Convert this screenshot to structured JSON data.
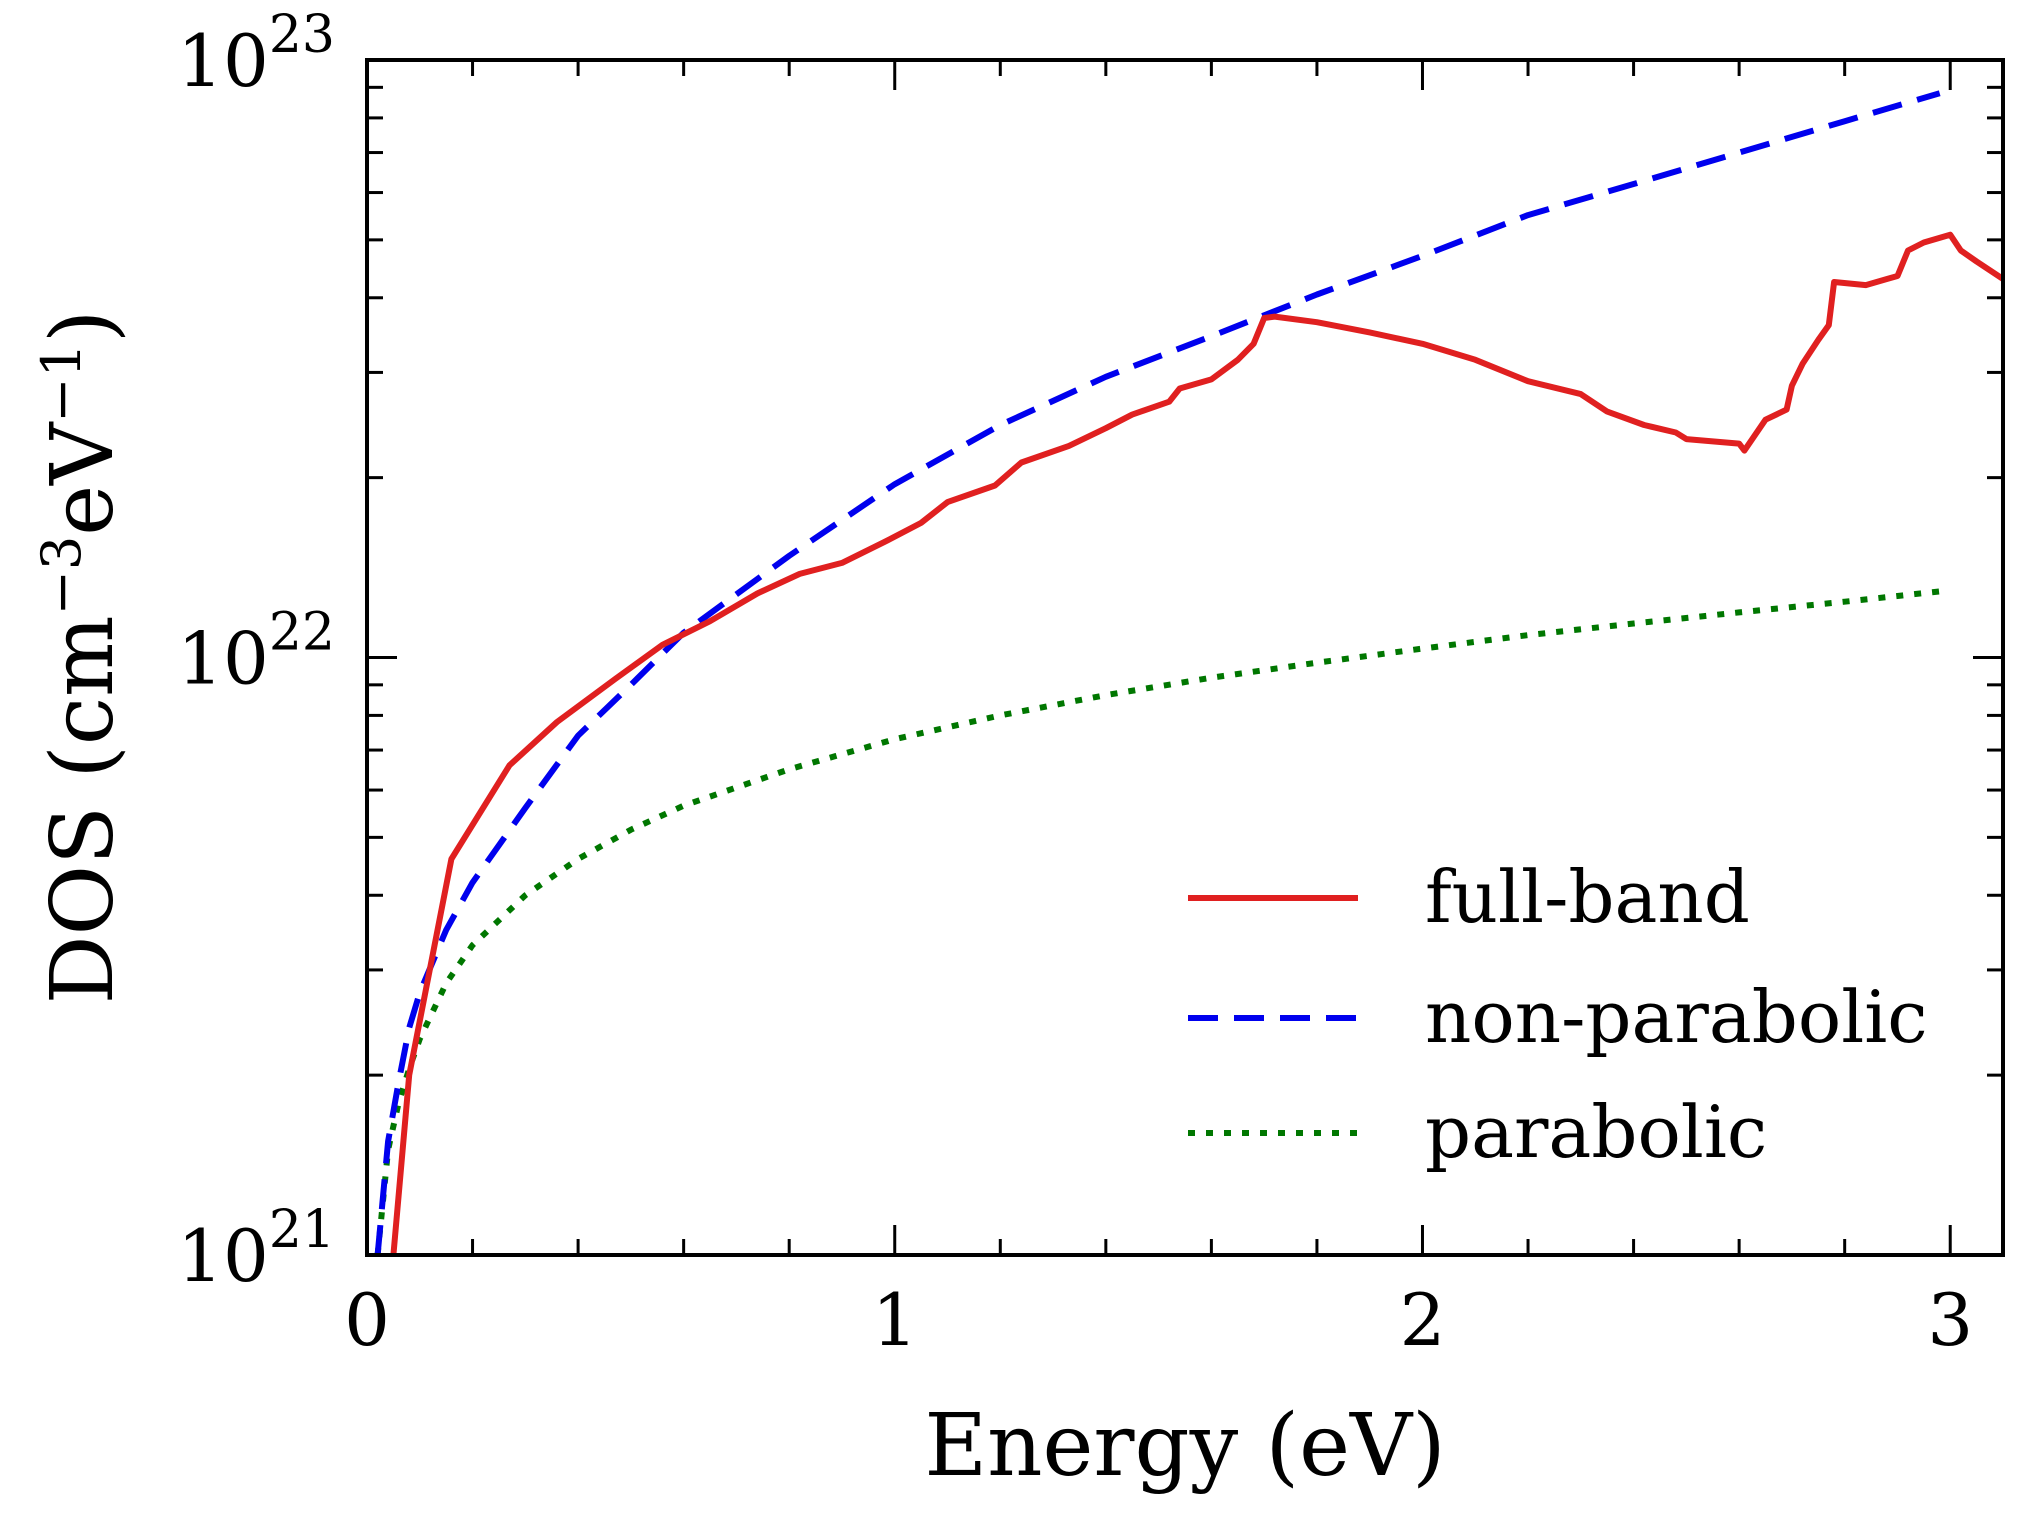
{
  "chart_data": {
    "type": "line",
    "title": "",
    "xlabel": "Energy (eV)",
    "ylabel_parts": {
      "main": "DOS (cm",
      "exp1": "−3",
      "mid": "eV",
      "exp2": "−1",
      "end": ")"
    },
    "xlim": [
      0,
      3.1
    ],
    "ylim": [
      1e+21,
      1e+23
    ],
    "yscale": "log",
    "x_ticks": [
      {
        "value": 0,
        "label": "0"
      },
      {
        "value": 1,
        "label": "1"
      },
      {
        "value": 2,
        "label": "2"
      },
      {
        "value": 3,
        "label": "3"
      }
    ],
    "y_ticks": [
      {
        "value": 1e+21,
        "base": "10",
        "exp": "21"
      },
      {
        "value": 1e+22,
        "base": "10",
        "exp": "22"
      },
      {
        "value": 1e+23,
        "base": "10",
        "exp": "23"
      }
    ],
    "legend_position": "lower-right",
    "series": [
      {
        "name": "full-band",
        "color": "#e02020",
        "style": "solid",
        "x": [
          0.05,
          0.08,
          0.16,
          0.27,
          0.36,
          0.47,
          0.56,
          0.65,
          0.74,
          0.82,
          0.9,
          0.98,
          1.05,
          1.1,
          1.19,
          1.24,
          1.33,
          1.4,
          1.45,
          1.52,
          1.54,
          1.6,
          1.65,
          1.68,
          1.7,
          1.72,
          1.8,
          1.9,
          2.0,
          2.1,
          2.2,
          2.3,
          2.35,
          2.42,
          2.48,
          2.5,
          2.6,
          2.61,
          2.65,
          2.69,
          2.7,
          2.72,
          2.75,
          2.77,
          2.78,
          2.84,
          2.88,
          2.9,
          2.92,
          2.95,
          3.0,
          3.02,
          3.05,
          3.1
        ],
        "y": [
          1e+21,
          2e+21,
          4.6e+21,
          6.6e+21,
          7.8e+21,
          9.2e+21,
          1.05e+22,
          1.15e+22,
          1.28e+22,
          1.38e+22,
          1.44e+22,
          1.56e+22,
          1.68e+22,
          1.82e+22,
          1.94e+22,
          2.12e+22,
          2.26e+22,
          2.42e+22,
          2.55e+22,
          2.68e+22,
          2.82e+22,
          2.92e+22,
          3.15e+22,
          3.35e+22,
          3.7e+22,
          3.72e+22,
          3.64e+22,
          3.5e+22,
          3.35e+22,
          3.15e+22,
          2.9e+22,
          2.76e+22,
          2.58e+22,
          2.45e+22,
          2.38e+22,
          2.32e+22,
          2.28e+22,
          2.22e+22,
          2.5e+22,
          2.6e+22,
          2.85e+22,
          3.1e+22,
          3.4e+22,
          3.6e+22,
          4.25e+22,
          4.2e+22,
          4.3e+22,
          4.35e+22,
          4.8e+22,
          4.95e+22,
          5.1e+22,
          4.8e+22,
          4.6e+22,
          4.3e+22
        ]
      },
      {
        "name": "non-parabolic",
        "color": "#0000ee",
        "style": "dashed",
        "x": [
          0.02,
          0.04,
          0.06,
          0.08,
          0.1,
          0.15,
          0.2,
          0.3,
          0.4,
          0.5,
          0.6,
          0.8,
          1.0,
          1.2,
          1.4,
          1.6,
          1.8,
          2.0,
          2.2,
          2.4,
          2.6,
          2.8,
          2.98
        ],
        "y": [
          1e+21,
          1.55e+21,
          1.95e+21,
          2.4e+21,
          2.75e+21,
          3.5e+21,
          4.2e+21,
          5.6e+21,
          7.4e+21,
          9e+21,
          1.1e+22,
          1.48e+22,
          1.95e+22,
          2.45e+22,
          2.95e+22,
          3.45e+22,
          4.05e+22,
          4.7e+22,
          5.5e+22,
          6.2e+22,
          7e+22,
          7.9e+22,
          8.8e+22
        ]
      },
      {
        "name": "parabolic",
        "color": "#007700",
        "style": "dotted",
        "x": [
          0.02,
          0.04,
          0.06,
          0.08,
          0.1,
          0.15,
          0.2,
          0.3,
          0.4,
          0.5,
          0.6,
          0.8,
          1.0,
          1.2,
          1.4,
          1.6,
          1.8,
          2.0,
          2.2,
          2.4,
          2.6,
          2.8,
          2.98
        ],
        "y": [
          1e+21,
          1.5e+21,
          1.8e+21,
          2.05e+21,
          2.3e+21,
          2.85e+21,
          3.3e+21,
          4e+21,
          4.6e+21,
          5.15e+21,
          5.65e+21,
          6.5e+21,
          7.3e+21,
          8e+21,
          8.65e+21,
          9.25e+21,
          9.8e+21,
          1.035e+22,
          1.09e+22,
          1.14e+22,
          1.19e+22,
          1.24e+22,
          1.29e+22
        ]
      }
    ]
  }
}
